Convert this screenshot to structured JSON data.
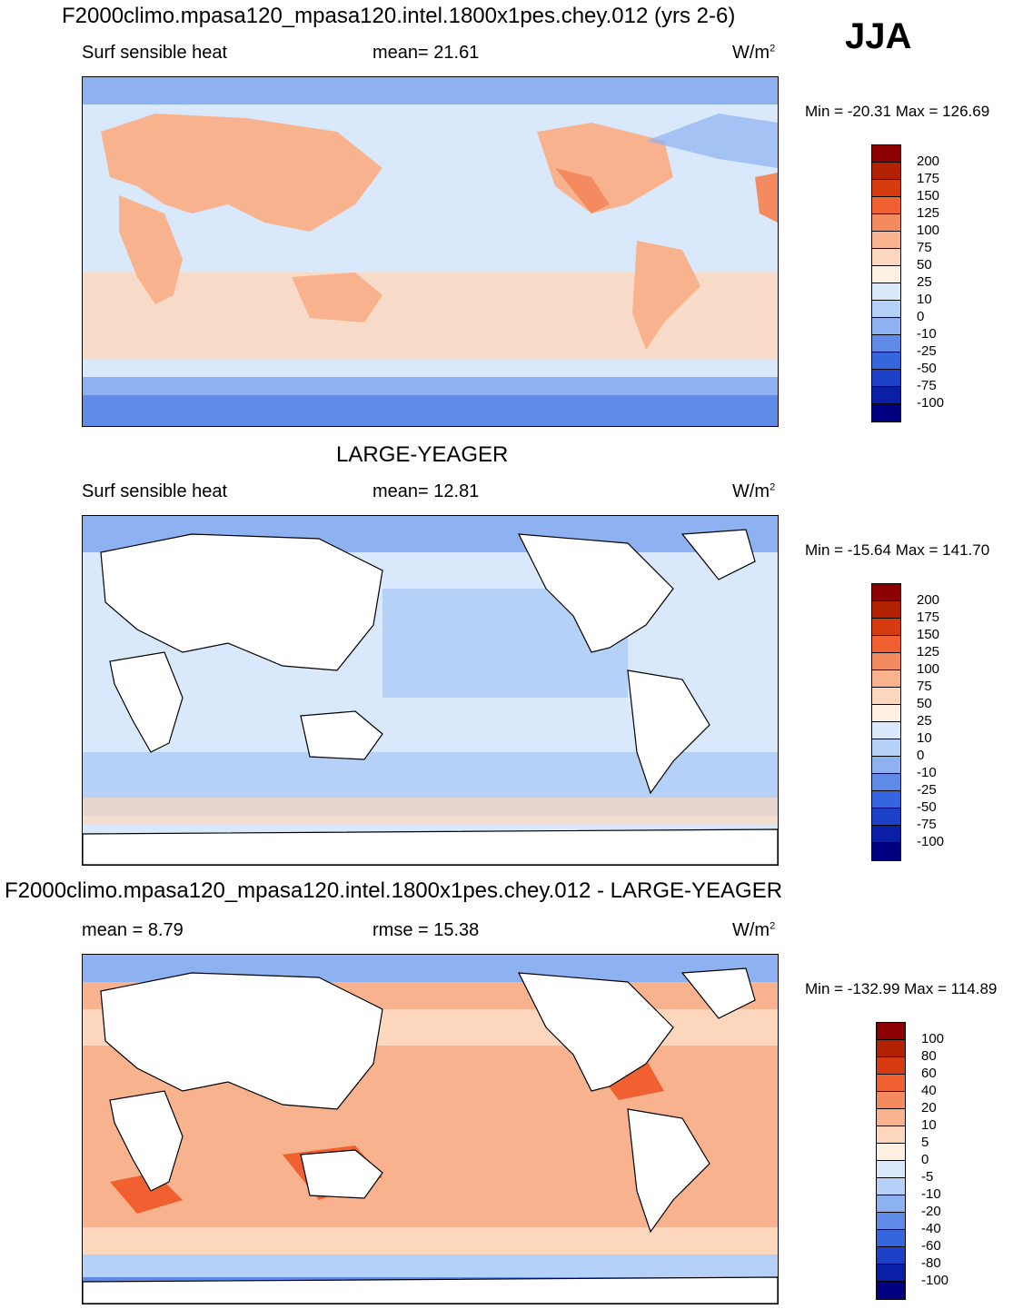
{
  "season": "JJA",
  "panels": [
    {
      "title": "F2000climo.mpasa120_mpasa120.intel.1800x1pes.chey.012 (yrs 2-6)",
      "left_label": "Surf sensible heat",
      "center_label": "mean=  21.61",
      "units": "W/m",
      "units_sup": "2",
      "minmax": "Min = -20.31 Max = 126.69",
      "levels": [
        "200",
        "175",
        "150",
        "125",
        "100",
        "75",
        "50",
        "25",
        "10",
        "0",
        "-10",
        "-25",
        "-50",
        "-75",
        "-100"
      ],
      "colors": [
        "#8b0000",
        "#b22200",
        "#d63a0f",
        "#f06030",
        "#f48a60",
        "#f9b28e",
        "#fcd7bd",
        "#fdf0e2",
        "#d9e9fb",
        "#b6d1f8",
        "#8db1f1",
        "#5f8be6",
        "#3566de",
        "#1c41c8",
        "#0a1fa6",
        "#000080"
      ]
    },
    {
      "title": "LARGE-YEAGER",
      "left_label": "Surf sensible heat",
      "center_label": "mean=  12.81",
      "units": "W/m",
      "units_sup": "2",
      "minmax": "Min = -15.64 Max = 141.70",
      "levels": [
        "200",
        "175",
        "150",
        "125",
        "100",
        "75",
        "50",
        "25",
        "10",
        "0",
        "-10",
        "-25",
        "-50",
        "-75",
        "-100"
      ],
      "colors": [
        "#8b0000",
        "#b22200",
        "#d63a0f",
        "#f06030",
        "#f48a60",
        "#f9b28e",
        "#fcd7bd",
        "#fdf0e2",
        "#d9e9fb",
        "#b6d1f8",
        "#8db1f1",
        "#5f8be6",
        "#3566de",
        "#1c41c8",
        "#0a1fa6",
        "#000080"
      ]
    },
    {
      "title": "F2000climo.mpasa120_mpasa120.intel.1800x1pes.chey.012 - LARGE-YEAGER",
      "left_label": "mean =   8.79",
      "center_label": "rmse =  15.38",
      "units": "W/m",
      "units_sup": "2",
      "minmax": "Min = -132.99 Max = 114.89",
      "levels": [
        "100",
        "80",
        "60",
        "40",
        "20",
        "10",
        "5",
        "0",
        "-5",
        "-10",
        "-20",
        "-40",
        "-60",
        "-80",
        "-100"
      ],
      "colors": [
        "#8b0000",
        "#b22200",
        "#d63a0f",
        "#f06030",
        "#f48a60",
        "#f9b28e",
        "#fcd7bd",
        "#fdf0e2",
        "#d9e9fb",
        "#b6d1f8",
        "#8db1f1",
        "#5f8be6",
        "#3566de",
        "#1c41c8",
        "#0a1fa6",
        "#000080"
      ]
    }
  ]
}
